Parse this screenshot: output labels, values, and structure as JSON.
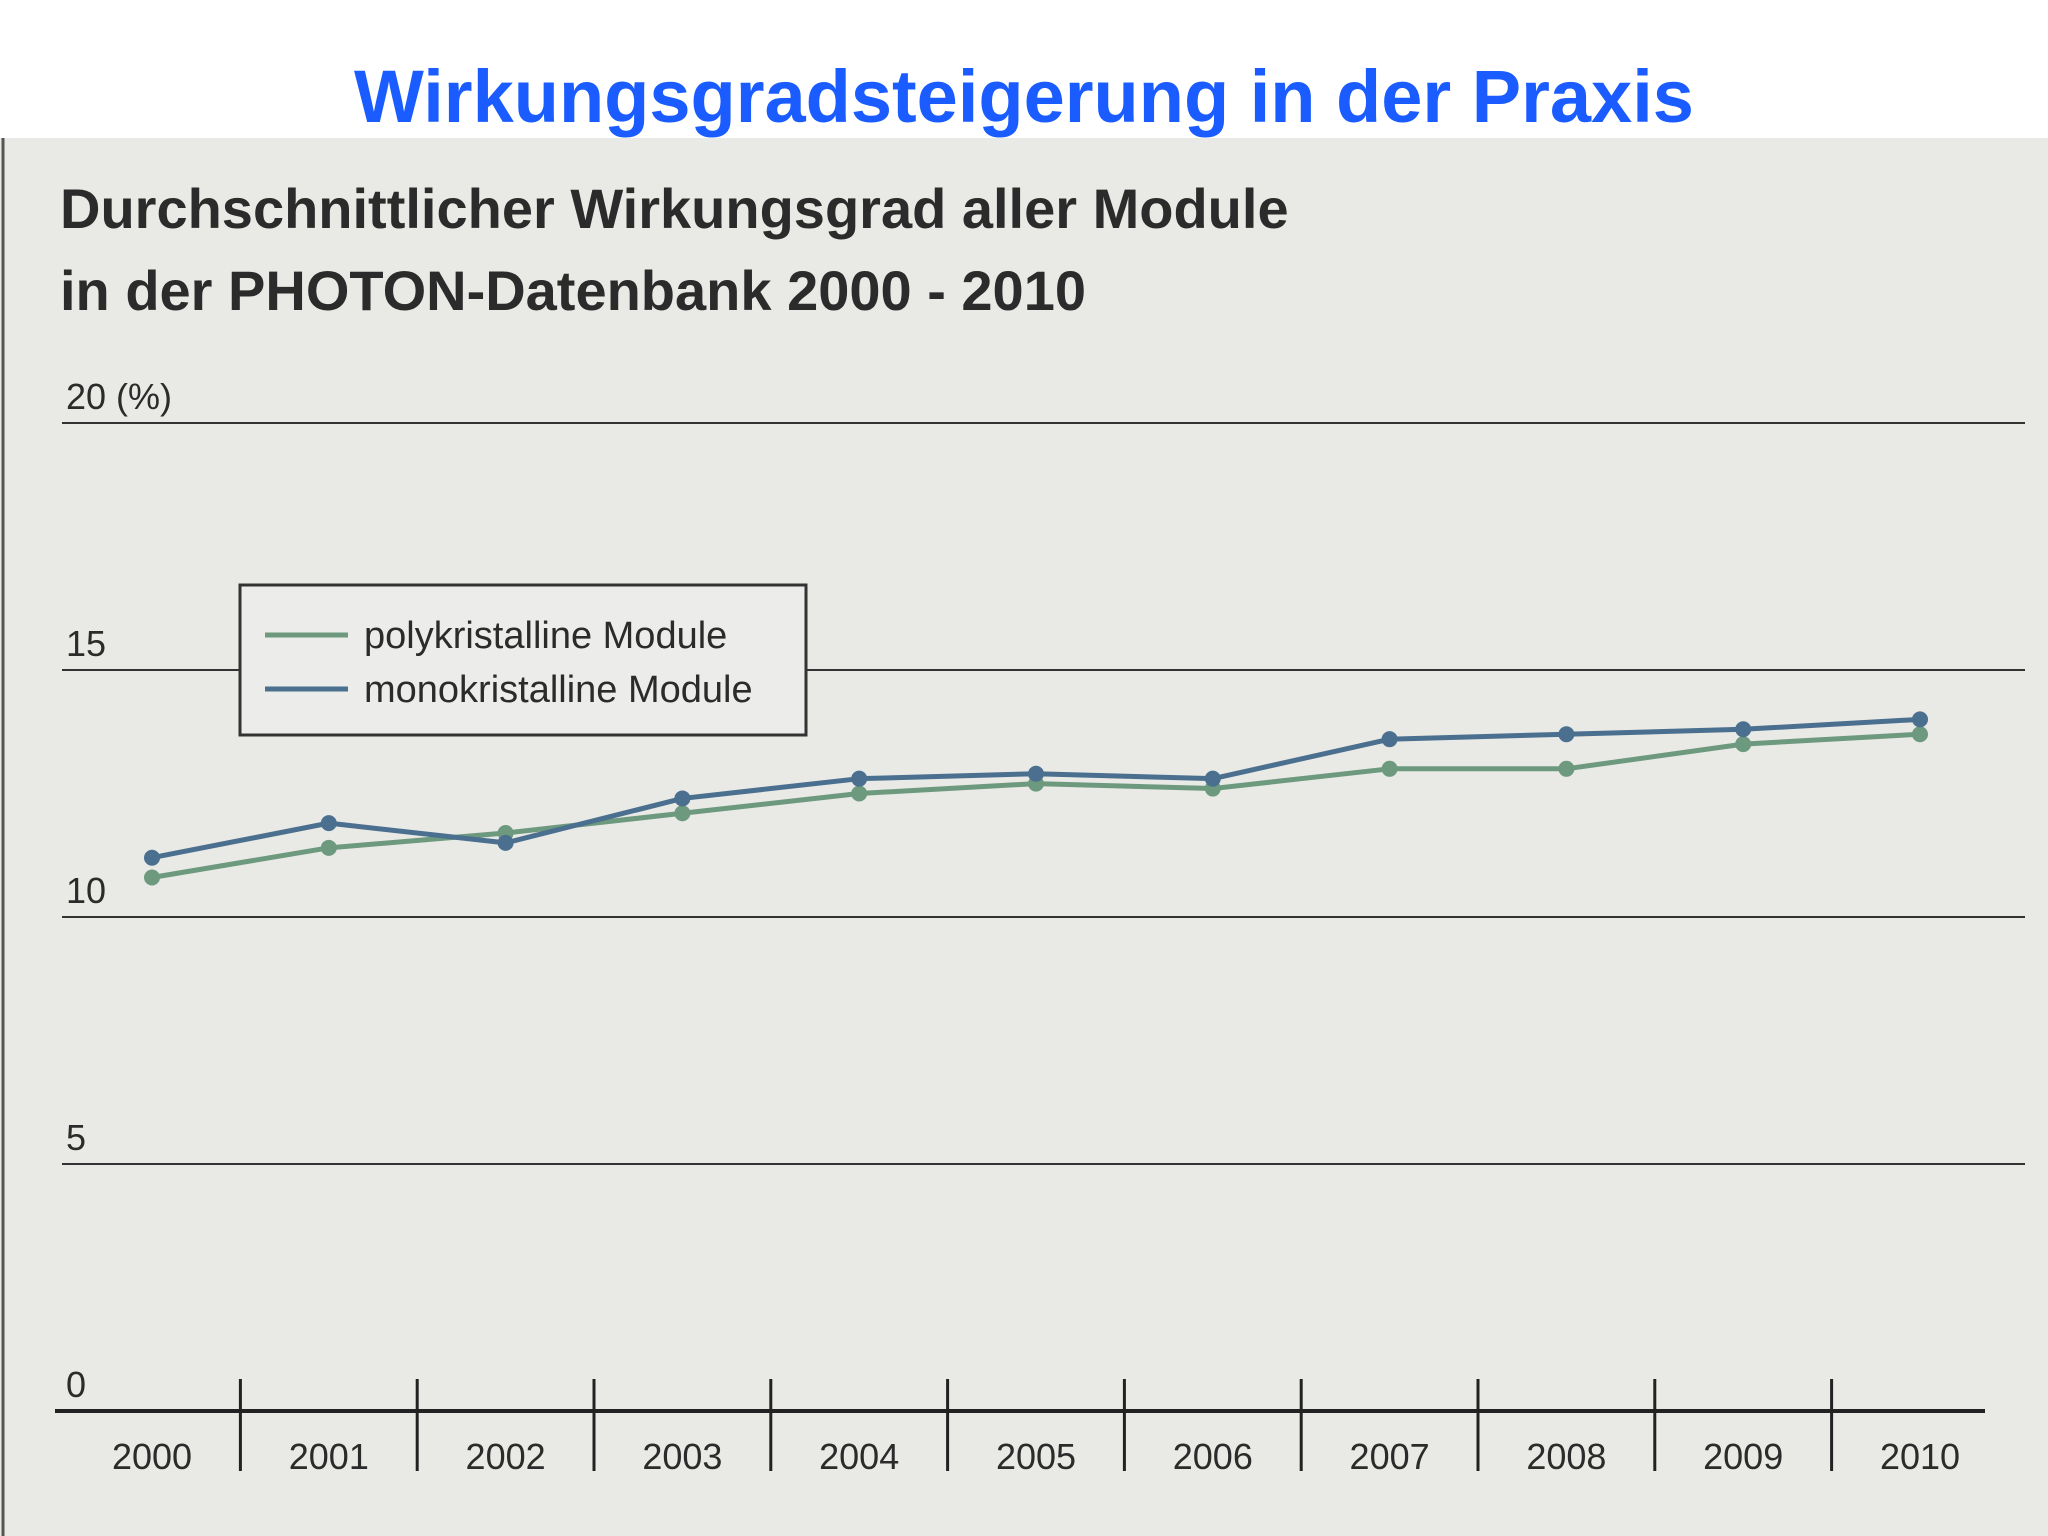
{
  "slide": {
    "title": "Wirkungsgradsteigerung in der Praxis"
  },
  "colors": {
    "title": "#1a5cff",
    "background": "#e9e9e5",
    "poly": "#6d9a7e",
    "mono": "#4a6f8f",
    "text": "#2b2b2b"
  },
  "chart_data": {
    "type": "line",
    "title": "Durchschnittlicher Wirkungsgrad aller Module",
    "subtitle": "in der PHOTON-Datenbank 2000 - 2010",
    "ylabel": "20 (%)",
    "ylim": [
      0,
      20
    ],
    "yticks": [
      {
        "value": 0,
        "label": "0"
      },
      {
        "value": 5,
        "label": "5"
      },
      {
        "value": 10,
        "label": "10"
      },
      {
        "value": 15,
        "label": "15"
      },
      {
        "value": 20,
        "label": "20 (%)"
      }
    ],
    "grid": true,
    "legend_position": "upper-left",
    "categories": [
      "2000",
      "2001",
      "2002",
      "2003",
      "2004",
      "2005",
      "2006",
      "2007",
      "2008",
      "2009",
      "2010"
    ],
    "series": [
      {
        "name": "polykristalline Module",
        "color": "#6d9a7e",
        "values": [
          10.8,
          11.4,
          11.7,
          12.1,
          12.5,
          12.7,
          12.6,
          13.0,
          13.0,
          13.5,
          13.7
        ]
      },
      {
        "name": "monokristalline Module",
        "color": "#4a6f8f",
        "values": [
          11.2,
          11.9,
          11.5,
          12.4,
          12.8,
          12.9,
          12.8,
          13.6,
          13.7,
          13.8,
          14.0
        ]
      }
    ]
  }
}
